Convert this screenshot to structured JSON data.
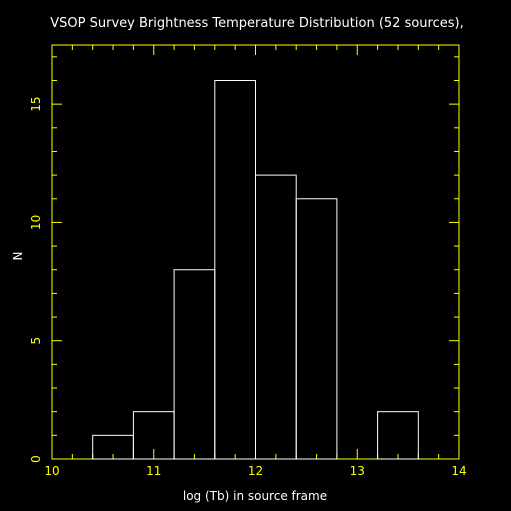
{
  "chart_data": {
    "type": "bar",
    "title": "VSOP Survey Brightness Temperature Distribution (52 sources),",
    "xlabel": "log (Tb) in source frame",
    "ylabel": "N",
    "xlim": [
      10,
      14
    ],
    "ylim": [
      0,
      17.5
    ],
    "x_ticks": [
      "10",
      "11",
      "12",
      "13",
      "14"
    ],
    "y_ticks": [
      "0",
      "5",
      "10",
      "15"
    ],
    "bins": [
      {
        "x0": 10.4,
        "x1": 10.8,
        "value": 1
      },
      {
        "x0": 10.8,
        "x1": 11.2,
        "value": 2
      },
      {
        "x0": 11.2,
        "x1": 11.6,
        "value": 8
      },
      {
        "x0": 11.6,
        "x1": 12.0,
        "value": 16
      },
      {
        "x0": 12.0,
        "x1": 12.4,
        "value": 12
      },
      {
        "x0": 12.4,
        "x1": 12.8,
        "value": 11
      },
      {
        "x0": 13.2,
        "x1": 13.6,
        "value": 2
      }
    ],
    "colors": {
      "background": "#000000",
      "frame": "#ffff00",
      "bars": "#ffffff",
      "text": "#ffffff",
      "tick_labels": "#ffff00"
    }
  }
}
